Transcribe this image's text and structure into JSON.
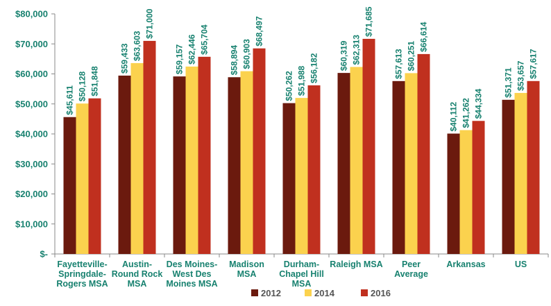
{
  "chart_data": {
    "type": "bar",
    "title": "",
    "xlabel": "",
    "ylabel": "",
    "ylim": [
      0,
      80000
    ],
    "yticks": [
      0,
      10000,
      20000,
      30000,
      40000,
      50000,
      60000,
      70000,
      80000
    ],
    "ytick_labels": [
      "$-",
      "$10,000",
      "$20,000",
      "$30,000",
      "$40,000",
      "$50,000",
      "$60,000",
      "$70,000",
      "$80,000"
    ],
    "categories": [
      [
        "Fayetteville-",
        "Springdale-",
        "Rogers MSA"
      ],
      [
        "Austin-",
        "Round Rock",
        "MSA"
      ],
      [
        "Des Moines-",
        "West Des",
        "Moines MSA"
      ],
      [
        "Madison",
        "MSA"
      ],
      [
        "Durham-",
        "Chapel Hill",
        "MSA"
      ],
      [
        "Raleigh MSA"
      ],
      [
        "Peer",
        "Average"
      ],
      [
        "Arkansas"
      ],
      [
        "US"
      ]
    ],
    "series": [
      {
        "name": "2012",
        "color": "#6b1a0e",
        "values": [
          45611,
          59433,
          59157,
          58894,
          50262,
          60319,
          57613,
          40112,
          51371
        ],
        "labels": [
          "$45,611",
          "$59,433",
          "$59,157",
          "$58,894",
          "$50,262",
          "$60,319",
          "$57,613",
          "$40,112",
          "$51,371"
        ]
      },
      {
        "name": "2014",
        "color": "#fbd24e",
        "values": [
          50128,
          63603,
          62446,
          60903,
          51988,
          62313,
          60251,
          41262,
          53657
        ],
        "labels": [
          "$50,128",
          "$63,603",
          "$62,446",
          "$60,903",
          "$51,988",
          "$62,313",
          "$60,251",
          "$41,262",
          "$53,657"
        ]
      },
      {
        "name": "2016",
        "color": "#c0301f",
        "values": [
          51848,
          71000,
          65704,
          68497,
          56182,
          71685,
          66614,
          44334,
          57617
        ],
        "labels": [
          "$51,848",
          "$71,000",
          "$65,704",
          "$68,497",
          "$56,182",
          "$71,685",
          "$66,614",
          "$44,334",
          "$57,617"
        ]
      }
    ],
    "grid": false,
    "legend": "bottom-center",
    "colors": {
      "axis": "#888888",
      "text": "#17816f",
      "legend_text": "#555555"
    }
  }
}
